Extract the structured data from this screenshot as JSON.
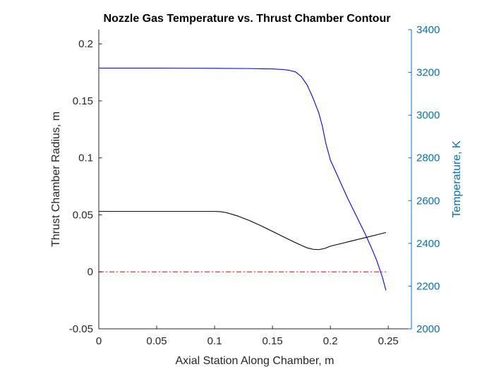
{
  "chart_data": {
    "type": "line",
    "title": "Nozzle Gas Temperature vs. Thrust Chamber Contour",
    "xlabel": "Axial Station Along Chamber, m",
    "ylabel_left": "Thrust Chamber Radius, m",
    "ylabel_right": "Temperature, K",
    "xlim": [
      0,
      0.27
    ],
    "ylim_left": [
      -0.05,
      0.2125
    ],
    "ylim_right": [
      2000,
      3400
    ],
    "x_ticks": [
      "0",
      "0.05",
      "0.1",
      "0.15",
      "0.2",
      "0.25"
    ],
    "x_tick_values": [
      0,
      0.05,
      0.1,
      0.15,
      0.2,
      0.25
    ],
    "y_left_ticks": [
      "-0.05",
      "0",
      "0.05",
      "0.1",
      "0.15",
      "0.2"
    ],
    "y_left_tick_values": [
      -0.05,
      0,
      0.05,
      0.1,
      0.15,
      0.2
    ],
    "y_right_ticks": [
      "2000",
      "2200",
      "2400",
      "2600",
      "2800",
      "3000",
      "3200",
      "3400"
    ],
    "y_right_tick_values": [
      2000,
      2200,
      2400,
      2600,
      2800,
      3000,
      3200,
      3400
    ],
    "grid": false,
    "colors": {
      "radius": "#000000",
      "temperature": "#0000ff",
      "centerline": "#ff0000",
      "right_axis": "#0072bd",
      "axes": "#262626"
    },
    "series": [
      {
        "key": "radius",
        "axis": "left",
        "x": [
          0,
          0.02,
          0.05,
          0.08,
          0.1,
          0.105,
          0.11,
          0.12,
          0.13,
          0.14,
          0.15,
          0.16,
          0.17,
          0.18,
          0.185,
          0.19,
          0.195,
          0.2,
          0.21,
          0.22,
          0.23,
          0.24,
          0.248
        ],
        "y": [
          0.053,
          0.053,
          0.053,
          0.053,
          0.053,
          0.0528,
          0.052,
          0.049,
          0.045,
          0.0405,
          0.0355,
          0.0305,
          0.0255,
          0.021,
          0.0198,
          0.0195,
          0.0205,
          0.0225,
          0.025,
          0.0275,
          0.03,
          0.0325,
          0.0345
        ]
      },
      {
        "key": "temperature",
        "axis": "right",
        "x": [
          0,
          0.05,
          0.1,
          0.13,
          0.15,
          0.16,
          0.165,
          0.17,
          0.175,
          0.18,
          0.185,
          0.19,
          0.193,
          0.196,
          0.2,
          0.205,
          0.21,
          0.215,
          0.22,
          0.225,
          0.23,
          0.235,
          0.24,
          0.245,
          0.248
        ],
        "y": [
          3220,
          3220,
          3219,
          3218,
          3216,
          3213,
          3209,
          3202,
          3180,
          3140,
          3080,
          3010,
          2950,
          2870,
          2790,
          2730,
          2670,
          2610,
          2555,
          2500,
          2445,
          2385,
          2320,
          2240,
          2180
        ]
      },
      {
        "key": "centerline",
        "axis": "left",
        "style": "dash-dot",
        "x": [
          0,
          0.248
        ],
        "y": [
          0,
          0
        ]
      }
    ]
  }
}
